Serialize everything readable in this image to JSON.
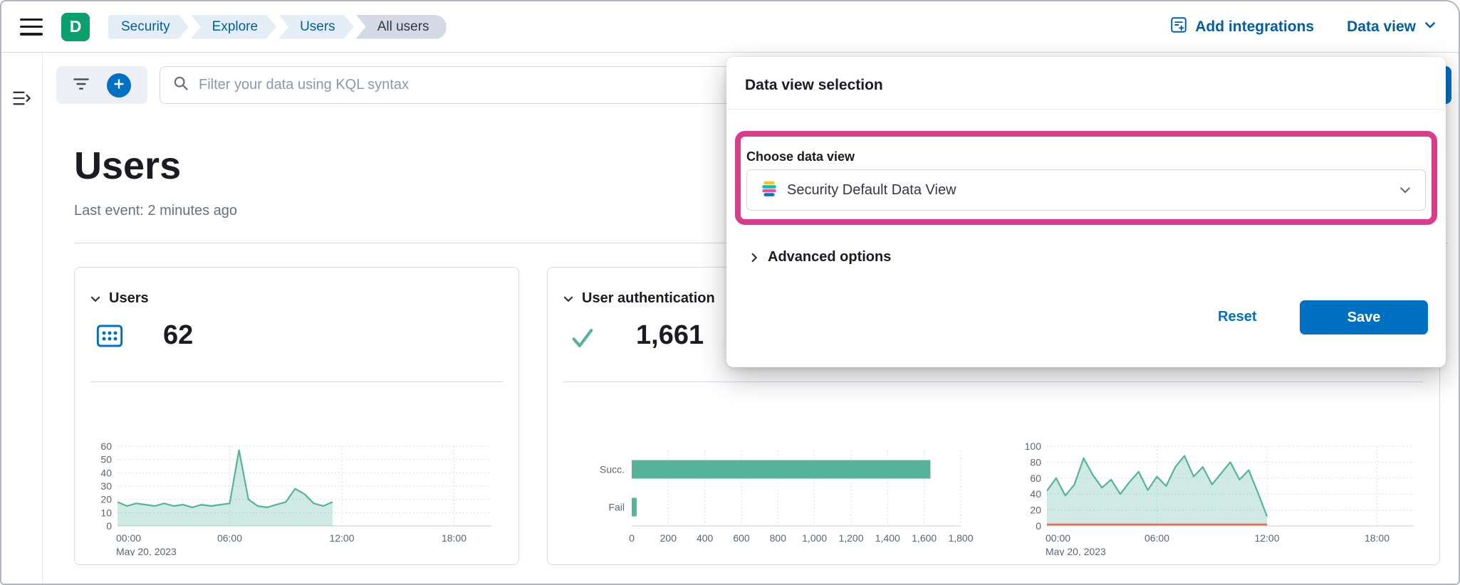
{
  "colors": {
    "primary": "#0071c2",
    "link_blue": "#005fa3",
    "highlight_pink": "#d93c8c",
    "chart_green": "#54b399",
    "chart_red": "#e7664c",
    "avatar_green": "#0b9e6f",
    "breadcrumb_bg": "#e4eef7",
    "breadcrumb_current_bg": "#d3dae6"
  },
  "icons": {
    "hamburger-icon": "☰",
    "expand-sidebar-icon": "⇥",
    "search-icon": "🔍",
    "filter-icon": "funnel-lines",
    "add-filter-icon": "+",
    "add-integrations-icon": "board-with-plus",
    "chevron-down-icon": "⌄",
    "chevron-right-icon": "›",
    "check-icon": "✓",
    "users-metric-icon": "dot-grid-panel",
    "elastic-logo-icon": "elastic-brand-mark"
  },
  "header": {
    "avatar_initial": "D",
    "breadcrumbs": [
      "Security",
      "Explore",
      "Users",
      "All users"
    ],
    "add_integrations_label": "Add integrations",
    "data_view_label": "Data view"
  },
  "toolbar": {
    "search_placeholder": "Filter your data using KQL syntax"
  },
  "page": {
    "title": "Users",
    "last_event": "Last event: 2 minutes ago"
  },
  "cards": {
    "users": {
      "title": "Users",
      "metric": "62"
    },
    "auth": {
      "title": "User authentication",
      "metric": "1,661"
    }
  },
  "popover": {
    "title": "Data view selection",
    "choose_label": "Choose data view",
    "selected_value": "Security Default Data View",
    "advanced_label": "Advanced options",
    "reset_label": "Reset",
    "save_label": "Save"
  },
  "chart_data": [
    {
      "id": "users-over-time",
      "type": "area",
      "title": "Users over time",
      "x_hours": [
        0,
        0.5,
        1,
        1.5,
        2,
        2.5,
        3,
        3.5,
        4,
        4.5,
        5,
        5.5,
        6,
        6.5,
        7,
        7.5,
        8,
        8.5,
        9,
        9.5,
        10,
        10.5,
        11,
        11.5
      ],
      "series": [
        {
          "name": "Users",
          "color": "#54b399",
          "values": [
            18,
            15,
            17,
            16,
            15,
            17,
            15,
            16,
            14,
            16,
            15,
            16,
            17,
            57,
            20,
            15,
            14,
            16,
            18,
            28,
            24,
            17,
            15,
            18
          ]
        }
      ],
      "ylim": [
        0,
        60
      ],
      "yticks": [
        0,
        10,
        20,
        30,
        40,
        50,
        60
      ],
      "x_domain": [
        0,
        20
      ],
      "xticks": [
        {
          "h": 0,
          "label": "00:00"
        },
        {
          "h": 6,
          "label": "06:00"
        },
        {
          "h": 12,
          "label": "12:00"
        },
        {
          "h": 18,
          "label": "18:00"
        }
      ],
      "date_label": "May 20, 2023",
      "grid": true
    },
    {
      "id": "auth-success-fail-bars",
      "type": "bar",
      "orientation": "horizontal",
      "title": "User authentications by result",
      "categories": [
        "Succ.",
        "Fail"
      ],
      "values": [
        1634,
        27
      ],
      "color": "#54b399",
      "xlim": [
        0,
        1800
      ],
      "xticks": [
        {
          "v": 0,
          "label": "0"
        },
        {
          "v": 200,
          "label": "200"
        },
        {
          "v": 400,
          "label": "400"
        },
        {
          "v": 600,
          "label": "600"
        },
        {
          "v": 800,
          "label": "800"
        },
        {
          "v": 1000,
          "label": "1,000"
        },
        {
          "v": 1200,
          "label": "1,200"
        },
        {
          "v": 1400,
          "label": "1,400"
        },
        {
          "v": 1600,
          "label": "1,600"
        },
        {
          "v": 1800,
          "label": "1,800"
        }
      ],
      "grid": true
    },
    {
      "id": "auth-over-time",
      "type": "area",
      "title": "User authentications over time",
      "x_hours": [
        0,
        0.5,
        1,
        1.5,
        2,
        2.5,
        3,
        3.5,
        4,
        4.5,
        5,
        5.5,
        6,
        6.5,
        7,
        7.5,
        8,
        8.5,
        9,
        9.5,
        10,
        10.5,
        11,
        11.5,
        12
      ],
      "series": [
        {
          "name": "Success",
          "color": "#54b399",
          "values": [
            44,
            60,
            38,
            52,
            85,
            64,
            48,
            58,
            40,
            55,
            68,
            45,
            62,
            50,
            74,
            88,
            62,
            74,
            52,
            66,
            80,
            58,
            70,
            42,
            12
          ]
        },
        {
          "name": "Fail",
          "color": "#e7664c",
          "values": [
            2,
            2,
            2,
            2,
            2,
            2,
            2,
            2,
            2,
            2,
            2,
            2,
            2,
            2,
            2,
            2,
            2,
            2,
            2,
            2,
            2,
            2,
            2,
            2,
            2
          ]
        }
      ],
      "ylim": [
        0,
        100
      ],
      "yticks": [
        0,
        20,
        40,
        60,
        80,
        100
      ],
      "x_domain": [
        0,
        20
      ],
      "xticks": [
        {
          "h": 0,
          "label": "00:00"
        },
        {
          "h": 6,
          "label": "06:00"
        },
        {
          "h": 12,
          "label": "12:00"
        },
        {
          "h": 18,
          "label": "18:00"
        }
      ],
      "date_label": "May 20, 2023",
      "grid": true
    }
  ]
}
